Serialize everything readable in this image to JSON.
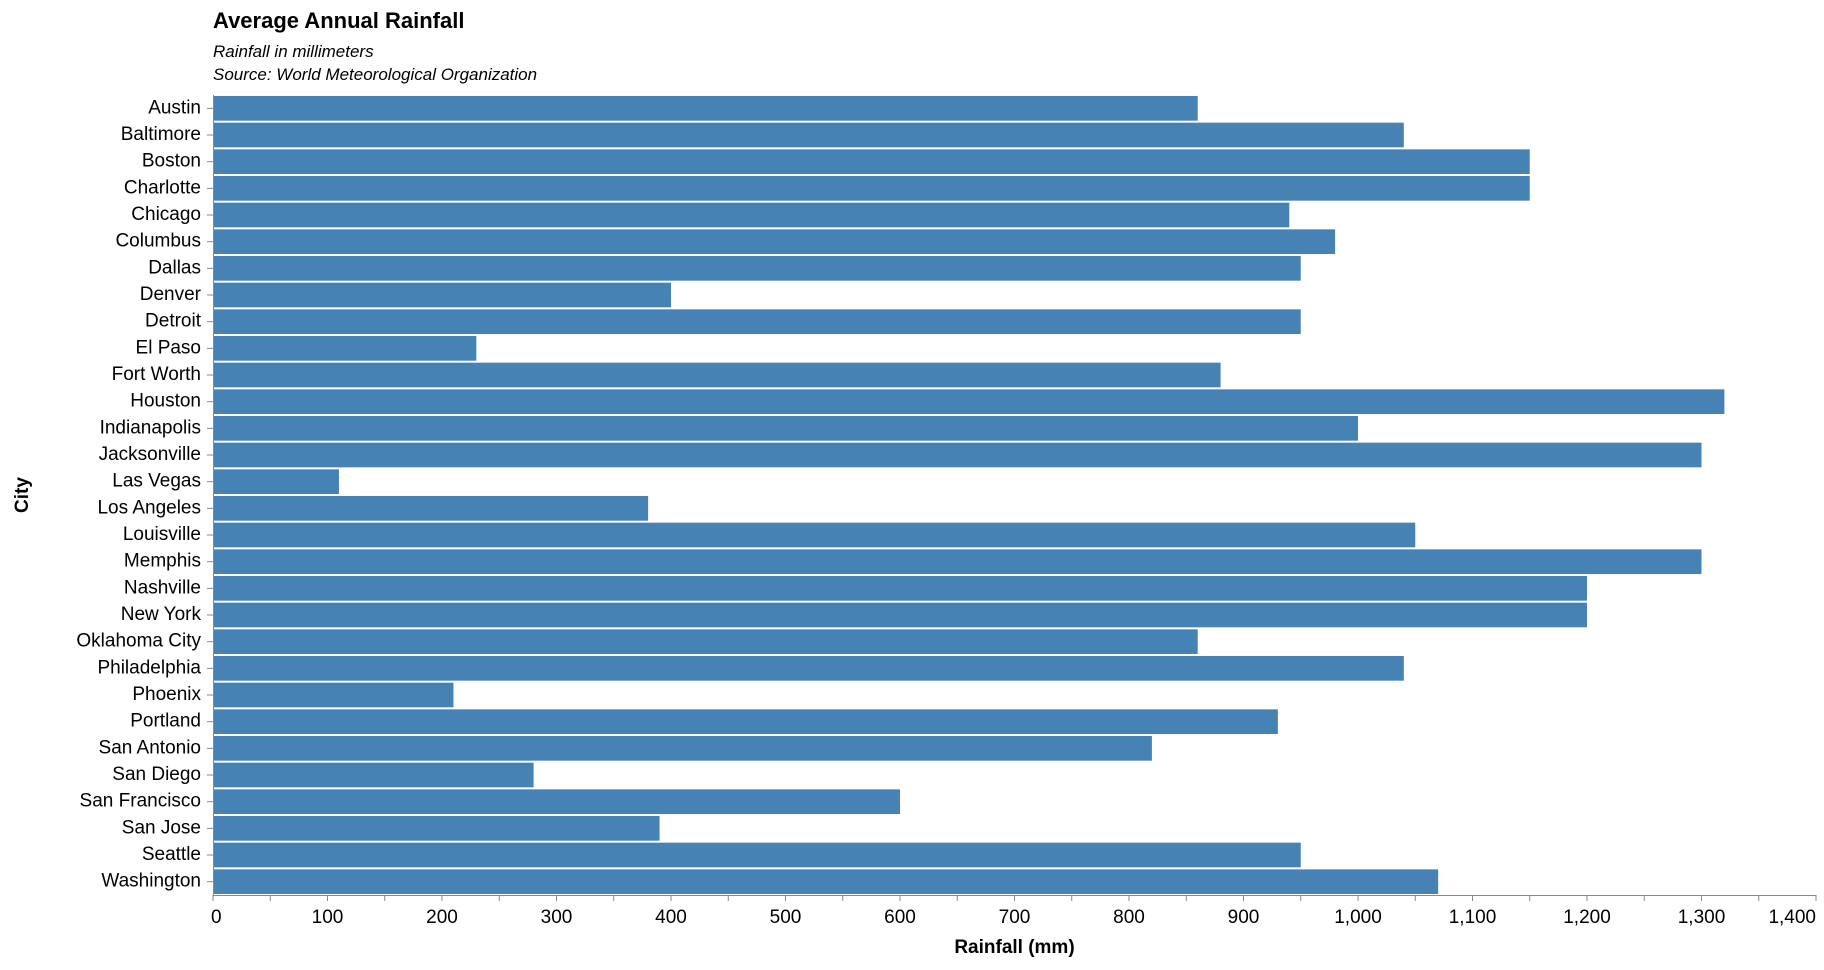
{
  "chart_data": {
    "type": "bar",
    "orientation": "horizontal",
    "title": "Average Annual Rainfall",
    "subtitle": [
      "Rainfall in millimeters",
      "Source: World Meteorological Organization"
    ],
    "xlabel": "Rainfall (mm)",
    "ylabel": "City",
    "xlim": [
      0,
      1400
    ],
    "xticks": [
      "0",
      "100",
      "200",
      "300",
      "400",
      "500",
      "600",
      "700",
      "800",
      "900",
      "1,000",
      "1,100",
      "1,200",
      "1,300",
      "1,400"
    ],
    "grid": false,
    "bar_color": "#4682b4",
    "categories": [
      "Austin",
      "Baltimore",
      "Boston",
      "Charlotte",
      "Chicago",
      "Columbus",
      "Dallas",
      "Denver",
      "Detroit",
      "El Paso",
      "Fort Worth",
      "Houston",
      "Indianapolis",
      "Jacksonville",
      "Las Vegas",
      "Los Angeles",
      "Louisville",
      "Memphis",
      "Nashville",
      "New York",
      "Oklahoma City",
      "Philadelphia",
      "Phoenix",
      "Portland",
      "San Antonio",
      "San Diego",
      "San Francisco",
      "San Jose",
      "Seattle",
      "Washington"
    ],
    "values": [
      860,
      1040,
      1150,
      1150,
      940,
      980,
      950,
      400,
      950,
      230,
      880,
      1320,
      1000,
      1300,
      110,
      380,
      1050,
      1300,
      1200,
      1200,
      860,
      1040,
      210,
      930,
      820,
      280,
      600,
      390,
      950,
      1070
    ]
  }
}
